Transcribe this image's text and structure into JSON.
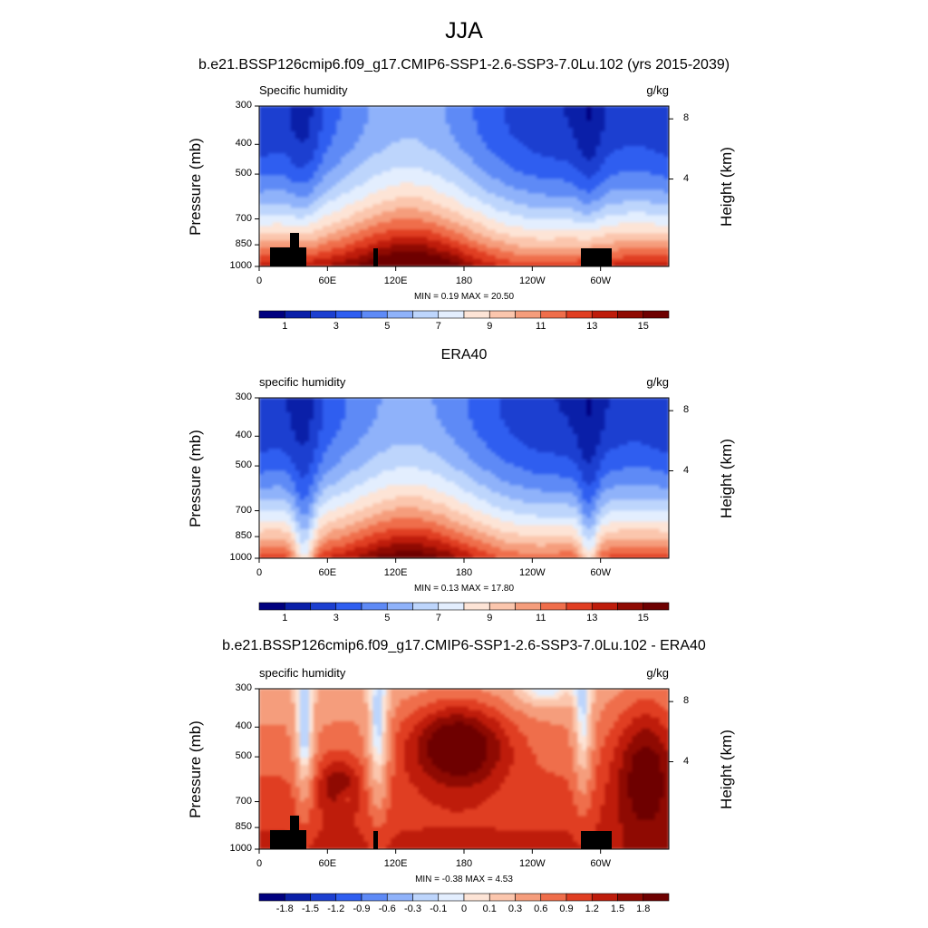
{
  "figure": {
    "title": "JJA",
    "case_name": "b.e21.BSSP126cmip6.f09_g17.CMIP6-SSP1-2.6-SSP3-7.0Lu.102 (yrs 2015-2039)"
  },
  "chart_data": [
    {
      "type": "heatmap",
      "title": "",
      "left_label": "Specific humidity",
      "right_label": "g/kg",
      "ylabel": "Pressure (mb)",
      "ylabel_right": "Height (km)",
      "xlabel": "",
      "x_ticks": [
        "0",
        "60E",
        "120E",
        "180",
        "120W",
        "60W"
      ],
      "y_ticks": [
        "300",
        "400",
        "500",
        "700",
        "850",
        "1000"
      ],
      "y_ticks_right": [
        "8",
        "4"
      ],
      "stats": "MIN =   0.19  MAX =  20.50",
      "colorbar": {
        "labels": [
          "1",
          "3",
          "5",
          "7",
          "9",
          "11",
          "13",
          "15"
        ],
        "colors": [
          "#00007f",
          "#0a1fa8",
          "#1c3fd0",
          "#2f5ef0",
          "#5e8af6",
          "#8fb2fa",
          "#bdd5fc",
          "#e3eefe",
          "#fde4d6",
          "#fbc6ad",
          "#f59d7c",
          "#ef6e4b",
          "#e03e22",
          "#be1c0b",
          "#8f0a02",
          "#6e0000"
        ]
      },
      "ylim": [
        1000,
        300
      ],
      "xlim": [
        0,
        360
      ]
    },
    {
      "type": "heatmap",
      "title": "ERA40",
      "left_label": "specific humidity",
      "right_label": "g/kg",
      "ylabel": "Pressure (mb)",
      "ylabel_right": "Height (km)",
      "xlabel": "",
      "x_ticks": [
        "0",
        "60E",
        "120E",
        "180",
        "120W",
        "60W"
      ],
      "y_ticks": [
        "300",
        "400",
        "500",
        "700",
        "850",
        "1000"
      ],
      "y_ticks_right": [
        "8",
        "4"
      ],
      "stats": "MIN =   0.13  MAX =  17.80",
      "colorbar": {
        "labels": [
          "1",
          "3",
          "5",
          "7",
          "9",
          "11",
          "13",
          "15"
        ],
        "colors": [
          "#00007f",
          "#0a1fa8",
          "#1c3fd0",
          "#2f5ef0",
          "#5e8af6",
          "#8fb2fa",
          "#bdd5fc",
          "#e3eefe",
          "#fde4d6",
          "#fbc6ad",
          "#f59d7c",
          "#ef6e4b",
          "#e03e22",
          "#be1c0b",
          "#8f0a02",
          "#6e0000"
        ]
      },
      "ylim": [
        1000,
        300
      ],
      "xlim": [
        0,
        360
      ]
    },
    {
      "type": "heatmap",
      "title": "b.e21.BSSP126cmip6.f09_g17.CMIP6-SSP1-2.6-SSP3-7.0Lu.102 - ERA40",
      "left_label": "specific humidity",
      "right_label": "g/kg",
      "ylabel": "Pressure (mb)",
      "ylabel_right": "Height (km)",
      "xlabel": "",
      "x_ticks": [
        "0",
        "60E",
        "120E",
        "180",
        "120W",
        "60W"
      ],
      "y_ticks": [
        "300",
        "400",
        "500",
        "700",
        "850",
        "1000"
      ],
      "y_ticks_right": [
        "8",
        "4"
      ],
      "stats": "MIN =  -0.38  MAX =   4.53",
      "colorbar": {
        "labels": [
          "-1.8",
          "-1.5",
          "-1.2",
          "-0.9",
          "-0.6",
          "-0.3",
          "-0.1",
          "0",
          "0.1",
          "0.3",
          "0.6",
          "0.9",
          "1.2",
          "1.5",
          "1.8"
        ],
        "colors": [
          "#00007f",
          "#0a1fa8",
          "#1c3fd0",
          "#2f5ef0",
          "#5e8af6",
          "#8fb2fa",
          "#bdd5fc",
          "#e3eefe",
          "#fde4d6",
          "#fbc6ad",
          "#f59d7c",
          "#ef6e4b",
          "#e03e22",
          "#be1c0b",
          "#8f0a02",
          "#6e0000"
        ]
      },
      "ylim": [
        1000,
        300
      ],
      "xlim": [
        0,
        360
      ]
    }
  ]
}
